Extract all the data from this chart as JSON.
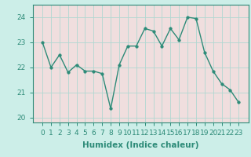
{
  "x": [
    0,
    1,
    2,
    3,
    4,
    5,
    6,
    7,
    8,
    9,
    10,
    11,
    12,
    13,
    14,
    15,
    16,
    17,
    18,
    19,
    20,
    21,
    22,
    23
  ],
  "y": [
    23.0,
    22.0,
    22.5,
    21.8,
    22.1,
    21.85,
    21.85,
    21.75,
    20.35,
    22.1,
    22.85,
    22.85,
    23.55,
    23.45,
    22.85,
    23.55,
    23.1,
    24.0,
    23.95,
    22.6,
    21.85,
    21.35,
    21.1,
    20.6
  ],
  "line_color": "#2d8b78",
  "marker": "o",
  "marker_size": 2.5,
  "linewidth": 1.0,
  "bg_color": "#cceee8",
  "grid_color": "#b0d8d2",
  "plot_bg": "#f0dede",
  "xlabel": "Humidex (Indice chaleur)",
  "xlabel_fontsize": 7.5,
  "tick_fontsize": 6.5,
  "ylim": [
    19.8,
    24.5
  ],
  "yticks": [
    20,
    21,
    22,
    23,
    24
  ],
  "xticks": [
    0,
    1,
    2,
    3,
    4,
    5,
    6,
    7,
    8,
    9,
    10,
    11,
    12,
    13,
    14,
    15,
    16,
    17,
    18,
    19,
    20,
    21,
    22,
    23
  ]
}
